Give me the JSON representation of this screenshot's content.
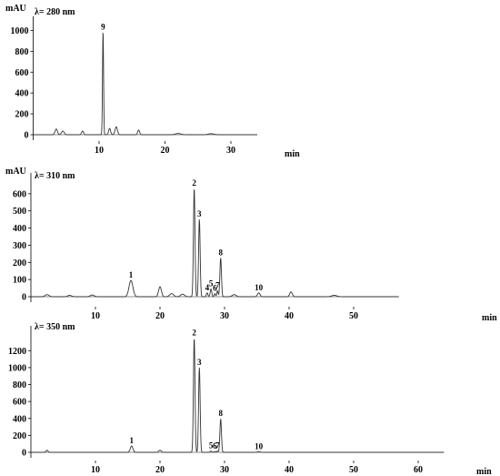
{
  "chart_data": [
    {
      "type": "line",
      "panel": "top",
      "wavelength_label": "λ= 280 nm",
      "ylabel": "mAU",
      "xlabel": "min",
      "xlim": [
        0,
        34
      ],
      "ylim": [
        0,
        1100
      ],
      "x_ticks": [
        10,
        20,
        30
      ],
      "y_ticks": [
        0,
        200,
        400,
        600,
        800,
        1000
      ],
      "x_tick_labels": [
        "10",
        "20",
        "30"
      ],
      "y_tick_labels": [
        "0",
        "200",
        "400",
        "600",
        "800",
        "1000"
      ],
      "peaks": [
        {
          "t": 3.5,
          "h": 55,
          "w": 0.18
        },
        {
          "t": 4.5,
          "h": 35,
          "w": 0.2
        },
        {
          "t": 7.5,
          "h": 35,
          "w": 0.15
        },
        {
          "t": 10.6,
          "h": 980,
          "w": 0.08,
          "label": "9"
        },
        {
          "t": 11.6,
          "h": 60,
          "w": 0.15
        },
        {
          "t": 12.6,
          "h": 75,
          "w": 0.18
        },
        {
          "t": 16.0,
          "h": 45,
          "w": 0.15
        },
        {
          "t": 22.0,
          "h": 12,
          "w": 0.4
        },
        {
          "t": 27.0,
          "h": 10,
          "w": 0.4
        }
      ]
    },
    {
      "type": "line",
      "panel": "middle",
      "wavelength_label": "λ= 310 nm",
      "ylabel": "mAU",
      "xlabel": "min",
      "xlim": [
        0,
        57
      ],
      "ylim": [
        0,
        700
      ],
      "x_ticks": [
        10,
        20,
        30,
        40,
        50
      ],
      "y_ticks": [
        0,
        100,
        200,
        300,
        400,
        500,
        600
      ],
      "x_tick_labels": [
        "10",
        "20",
        "30",
        "40",
        "50"
      ],
      "y_tick_labels": [
        "0",
        "100",
        "200",
        "300",
        "400",
        "500",
        "600"
      ],
      "peaks": [
        {
          "t": 2.5,
          "h": 12,
          "w": 0.3
        },
        {
          "t": 6.0,
          "h": 8,
          "w": 0.3
        },
        {
          "t": 9.5,
          "h": 10,
          "w": 0.3
        },
        {
          "t": 15.5,
          "h": 95,
          "w": 0.3,
          "label": "1"
        },
        {
          "t": 20.0,
          "h": 58,
          "w": 0.22
        },
        {
          "t": 21.8,
          "h": 18,
          "w": 0.3
        },
        {
          "t": 23.5,
          "h": 15,
          "w": 0.3
        },
        {
          "t": 25.3,
          "h": 630,
          "w": 0.12,
          "label": "2"
        },
        {
          "t": 26.1,
          "h": 450,
          "w": 0.12,
          "label": "3"
        },
        {
          "t": 27.3,
          "h": 22,
          "w": 0.12,
          "label": "4"
        },
        {
          "t": 27.9,
          "h": 45,
          "w": 0.12,
          "label": "5"
        },
        {
          "t": 28.5,
          "h": 18,
          "w": 0.1,
          "label": "6"
        },
        {
          "t": 28.9,
          "h": 35,
          "w": 0.1,
          "label": "7"
        },
        {
          "t": 29.4,
          "h": 225,
          "w": 0.12,
          "label": "8"
        },
        {
          "t": 31.5,
          "h": 12,
          "w": 0.3
        },
        {
          "t": 35.3,
          "h": 22,
          "w": 0.2,
          "label": "10"
        },
        {
          "t": 40.3,
          "h": 28,
          "w": 0.2
        },
        {
          "t": 47.0,
          "h": 8,
          "w": 0.4
        }
      ]
    },
    {
      "type": "line",
      "panel": "bottom",
      "wavelength_label": "λ= 350 nm",
      "ylabel": "",
      "xlabel": "min",
      "xlim": [
        0,
        64
      ],
      "ylim": [
        0,
        1450
      ],
      "x_ticks": [
        10,
        20,
        30,
        40,
        50,
        60
      ],
      "y_ticks": [
        0,
        200,
        400,
        600,
        800,
        1000,
        1200
      ],
      "x_tick_labels": [
        "10",
        "20",
        "30",
        "40",
        "50",
        "60"
      ],
      "y_tick_labels": [
        "0",
        "200",
        "400",
        "600",
        "800",
        "1000",
        "1200"
      ],
      "peaks": [
        {
          "t": 2.5,
          "h": 25,
          "w": 0.15
        },
        {
          "t": 15.6,
          "h": 75,
          "w": 0.2,
          "label": "1"
        },
        {
          "t": 20.0,
          "h": 25,
          "w": 0.2
        },
        {
          "t": 25.3,
          "h": 1350,
          "w": 0.12,
          "label": "2"
        },
        {
          "t": 26.1,
          "h": 1000,
          "w": 0.12,
          "label": "3"
        },
        {
          "t": 27.9,
          "h": 15,
          "w": 0.12,
          "label": "5"
        },
        {
          "t": 28.5,
          "h": 10,
          "w": 0.1,
          "label": "6"
        },
        {
          "t": 28.9,
          "h": 15,
          "w": 0.1,
          "label": "7"
        },
        {
          "t": 29.4,
          "h": 395,
          "w": 0.12,
          "label": "8"
        },
        {
          "t": 35.3,
          "h": 8,
          "w": 0.2,
          "label": "10"
        }
      ]
    }
  ]
}
